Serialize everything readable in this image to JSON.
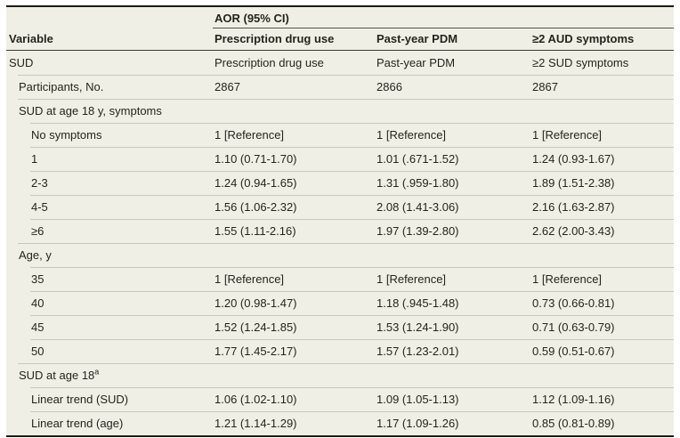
{
  "table": {
    "header": {
      "variable_label": "Variable",
      "spanner": "AOR (95% CI)",
      "columns": [
        "Prescription drug use",
        "Past-year PDM",
        "≥2 AUD symptoms"
      ]
    },
    "rows": [
      {
        "label": "SUD",
        "indent": 0,
        "cells": [
          "Prescription drug use",
          "Past-year PDM",
          "≥2 SUD symptoms"
        ]
      },
      {
        "label": "Participants, No.",
        "indent": 1,
        "cells": [
          "2867",
          "2866",
          "2867"
        ]
      },
      {
        "label": "SUD at age 18 y, symptoms",
        "indent": 1,
        "cells": [
          "",
          "",
          ""
        ]
      },
      {
        "label": "No symptoms",
        "indent": 2,
        "cells": [
          "1 [Reference]",
          "1 [Reference]",
          "1 [Reference]"
        ]
      },
      {
        "label": "1",
        "indent": 2,
        "cells": [
          "1.10 (0.71-1.70)",
          "1.01 (.671-1.52)",
          "1.24 (0.93-1.67)"
        ]
      },
      {
        "label": "2-3",
        "indent": 2,
        "cells": [
          "1.24 (0.94-1.65)",
          "1.31 (.959-1.80)",
          "1.89 (1.51-2.38)"
        ]
      },
      {
        "label": "4-5",
        "indent": 2,
        "cells": [
          "1.56 (1.06-2.32)",
          "2.08 (1.41-3.06)",
          "2.16 (1.63-2.87)"
        ]
      },
      {
        "label": "≥6",
        "indent": 2,
        "cells": [
          "1.55 (1.11-2.16)",
          "1.97 (1.39-2.80)",
          "2.62 (2.00-3.43)"
        ]
      },
      {
        "label": "Age, y",
        "indent": 1,
        "cells": [
          "",
          "",
          ""
        ]
      },
      {
        "label": "35",
        "indent": 2,
        "cells": [
          "1 [Reference]",
          "1 [Reference]",
          "1 [Reference]"
        ]
      },
      {
        "label": "40",
        "indent": 2,
        "cells": [
          "1.20 (0.98-1.47)",
          "1.18 (.945-1.48)",
          "0.73 (0.66-0.81)"
        ]
      },
      {
        "label": "45",
        "indent": 2,
        "cells": [
          "1.52 (1.24-1.85)",
          "1.53 (1.24-1.90)",
          "0.71 (0.63-0.79)"
        ]
      },
      {
        "label": "50",
        "indent": 2,
        "cells": [
          "1.77 (1.45-2.17)",
          "1.57 (1.23-2.01)",
          "0.59 (0.51-0.67)"
        ]
      },
      {
        "label": "SUD at age 18",
        "sup": "a",
        "indent": 1,
        "cells": [
          "",
          "",
          ""
        ]
      },
      {
        "label": "Linear trend (SUD)",
        "indent": 2,
        "cells": [
          "1.06 (1.02-1.10)",
          "1.09 (1.05-1.13)",
          "1.12 (1.09-1.16)"
        ]
      },
      {
        "label": "Linear trend (age)",
        "indent": 2,
        "cells": [
          "1.21 (1.14-1.29)",
          "1.17 (1.09-1.26)",
          "0.85 (0.81-0.89)"
        ]
      }
    ]
  },
  "colors": {
    "table_background": "#f0efe6",
    "page_background": "#ffffff",
    "text": "#26241d",
    "thick_rule": "#1b1a16",
    "header_rule": "#3b3931",
    "spanner_rule": "#55534a",
    "row_hairline": "#c9c7ba"
  }
}
